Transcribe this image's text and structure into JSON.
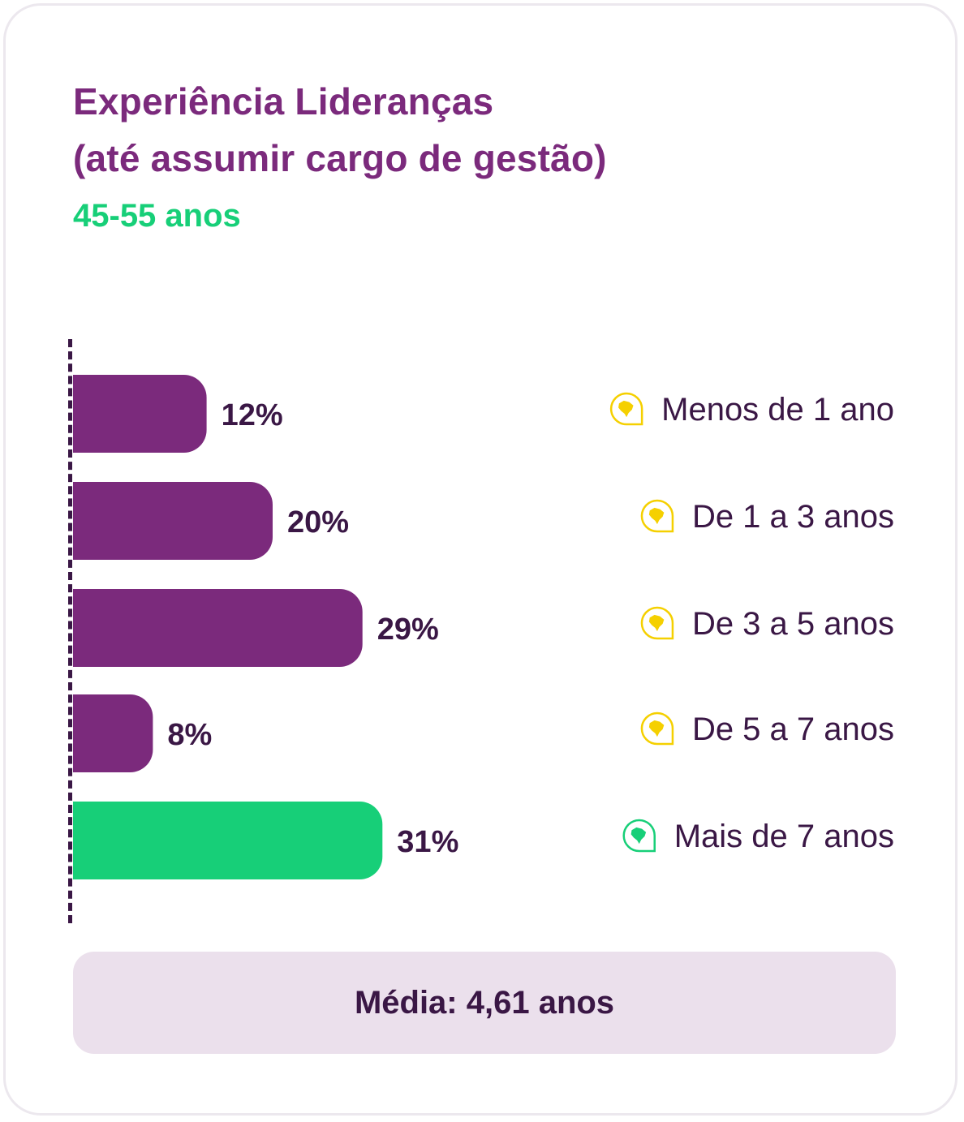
{
  "title_lines": [
    "Experiência Lideranças",
    "(até assumir cargo de gestão)"
  ],
  "subtitle": "45-55 anos",
  "summary": "Média: 4,61 anos",
  "colors": {
    "title": "#7b2a7c",
    "subtitle": "#17cf78",
    "bar_default": "#7b2a7c",
    "bar_highlight": "#17cf78",
    "icon_default": "#f5d000",
    "icon_highlight": "#17cf78",
    "text": "#3a1745"
  },
  "chart_data": {
    "type": "bar",
    "orientation": "horizontal",
    "categories": [
      "Menos de 1 ano",
      "De 1 a 3 anos",
      "De 3 a 5 anos",
      "De 5 a 7 anos",
      "Mais de 7 anos"
    ],
    "values": [
      12,
      20,
      29,
      8,
      31
    ],
    "value_labels": [
      "12%",
      "20%",
      "29%",
      "8%",
      "31%"
    ],
    "highlight_index": 4,
    "unit": "%",
    "grid": false,
    "legend": "none",
    "category_icon": "brazil-map-icon"
  }
}
